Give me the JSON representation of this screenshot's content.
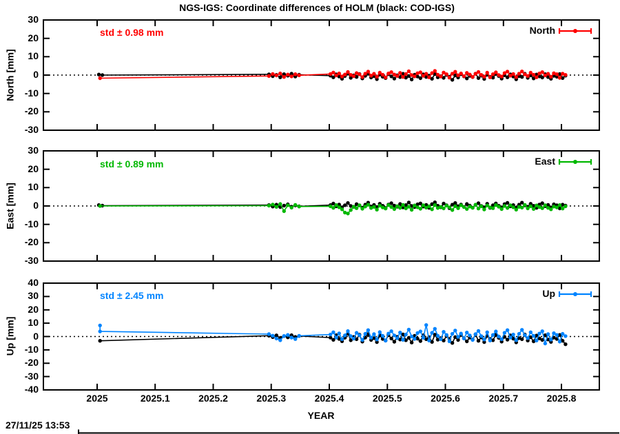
{
  "title": "NGS-IGS: Coordinate differences of HOLM (black: COD-IGS)",
  "timestamp": "27/11/25 13:53",
  "x_axis": {
    "label": "YEAR",
    "ticks": [
      {
        "value": 2025.0,
        "label": "2025"
      },
      {
        "value": 2025.1,
        "label": "2025.1"
      },
      {
        "value": 2025.2,
        "label": "2025.2"
      },
      {
        "value": 2025.3,
        "label": "2025.3"
      },
      {
        "value": 2025.4,
        "label": "2025.4"
      },
      {
        "value": 2025.5,
        "label": "2025.5"
      },
      {
        "value": 2025.6,
        "label": "2025.6"
      },
      {
        "value": 2025.7,
        "label": "2025.7"
      },
      {
        "value": 2025.8,
        "label": "2025.8"
      }
    ],
    "range": [
      2024.907,
      2025.865
    ]
  },
  "colors": {
    "north_accent": "#ff0000",
    "east_accent": "#00b800",
    "up_accent": "#0084ff",
    "reference_series": "#000000",
    "zero_line": "#000000"
  },
  "chart_data": {
    "type": "scatter",
    "subtype": "time-series with connecting lines, 3 stacked panels",
    "grid": "zero-line dotted only",
    "legend_position": "top-right inside each panel",
    "panels": [
      {
        "name": "North",
        "ylabel": "North [mm]",
        "ylim": [
          -30,
          30
        ],
        "yticks": [
          30,
          20,
          10,
          0,
          -10,
          -20,
          -30
        ],
        "std_label": "std ± 0.98 mm",
        "legend_label": "North",
        "accent_color": "#ff0000",
        "series": [
          {
            "name": "COD-IGS",
            "color": "#000000",
            "segments": [
              {
                "points": [
                  [
                    2025.003,
                    0.3
                  ],
                  [
                    2025.009,
                    0.0
                  ]
                ]
              },
              {
                "x_start": 2025.296,
                "x_step": 0.0065,
                "values": [
                  0.4,
                  -0.6,
                  0.1,
                  -1.2,
                  0.5,
                  -0.3,
                  0.8,
                  -0.8,
                  0.2
                ]
              },
              {
                "x_start": 2025.402,
                "x_step": 0.005,
                "values": [
                  -0.3,
                  -1.2,
                  0.4,
                  -0.8,
                  -2.0,
                  -0.5,
                  0.9,
                  -1.5,
                  -0.2,
                  -1.0,
                  0.6,
                  -1.8,
                  -0.4,
                  0.8,
                  -1.3,
                  -0.6,
                  -2.2,
                  0.3,
                  -0.9,
                  -1.6,
                  0.5,
                  -0.7,
                  -1.9,
                  -0.1,
                  -1.1,
                  0.7,
                  -1.4,
                  -0.5,
                  -2.4,
                  0.2,
                  -0.8,
                  -1.7,
                  0.4,
                  -1.0,
                  -0.3,
                  -2.0,
                  0.6,
                  -1.2,
                  -0.6,
                  -1.5,
                  0.1,
                  -0.9,
                  -2.6,
                  -0.2,
                  -1.3,
                  0.5,
                  -0.7,
                  -1.8,
                  -0.4,
                  -1.1,
                  0.8,
                  -1.6,
                  -0.3,
                  -2.1,
                  0.2,
                  -0.9,
                  -1.4,
                  0.6,
                  -0.5,
                  -1.9,
                  -0.1,
                  -1.2,
                  0.4,
                  -0.8,
                  -2.3,
                  -0.6,
                  -1.0,
                  0.7,
                  -1.5,
                  -0.2,
                  -1.8,
                  0.3,
                  -0.7,
                  -1.3,
                  0.5,
                  -1.1,
                  -2.0,
                  -0.4,
                  -0.9,
                  0.6,
                  -1.6,
                  -0.3
                ]
              }
            ]
          },
          {
            "name": "NGS-IGS",
            "color": "#ff0000",
            "segments": [
              {
                "points": [
                  [
                    2025.005,
                    -1.7
                  ]
                ]
              },
              {
                "x_start": 2025.296,
                "x_step": 0.0065,
                "values": [
                  -0.5,
                  0.6,
                  -0.2,
                  0.9,
                  -1.0,
                  0.3,
                  -0.7,
                  0.5,
                  -0.1
                ]
              },
              {
                "x_start": 2025.402,
                "x_step": 0.005,
                "values": [
                  0.6,
                  1.4,
                  -0.2,
                  0.9,
                  -0.8,
                  0.3,
                  1.7,
                  0.1,
                  -0.6,
                  1.1,
                  0.4,
                  -1.1,
                  0.8,
                  1.9,
                  -0.3,
                  0.7,
                  -0.9,
                  1.3,
                  0.2,
                  -1.3,
                  0.9,
                  1.6,
                  0.3,
                  -0.5,
                  1.2,
                  -1.0,
                  0.6,
                  2.1,
                  0.0,
                  -0.7,
                  1.0,
                  1.5,
                  -0.4,
                  0.7,
                  -1.2,
                  1.1,
                  2.3,
                  0.2,
                  -0.8,
                  1.4,
                  0.5,
                  -1.4,
                  0.8,
                  1.8,
                  -0.1,
                  0.9,
                  -0.6,
                  1.2,
                  0.3,
                  -1.0,
                  0.7,
                  1.7,
                  0.1,
                  -0.9,
                  1.3,
                  -1.2,
                  0.5,
                  1.5,
                  0.0,
                  -0.8,
                  1.1,
                  1.9,
                  -0.3,
                  0.6,
                  -1.1,
                  0.8,
                  2.0,
                  0.4,
                  -0.5,
                  1.3,
                  0.2,
                  -1.2,
                  0.9,
                  1.6,
                  -0.2,
                  0.7,
                  -0.9,
                  1.0,
                  0.5,
                  -1.5,
                  0.8,
                  0.1
                ]
              }
            ]
          }
        ]
      },
      {
        "name": "East",
        "ylabel": "East [mm]",
        "ylim": [
          -30,
          30
        ],
        "yticks": [
          30,
          20,
          10,
          0,
          -10,
          -20,
          -30
        ],
        "std_label": "std ± 0.89 mm",
        "legend_label": "East",
        "accent_color": "#00b800",
        "series": [
          {
            "name": "COD-IGS",
            "color": "#000000",
            "segments": [
              {
                "points": [
                  [
                    2025.003,
                    0.5
                  ],
                  [
                    2025.009,
                    0.2
                  ]
                ]
              },
              {
                "x_start": 2025.296,
                "x_step": 0.0065,
                "values": [
                  0.5,
                  -0.3,
                  0.7,
                  -0.6,
                  0.2,
                  0.9,
                  -0.4,
                  0.3,
                  -0.2
                ]
              },
              {
                "x_start": 2025.402,
                "x_step": 0.005,
                "values": [
                  0.5,
                  1.3,
                  -0.2,
                  0.8,
                  -0.7,
                  0.4,
                  1.6,
                  0.0,
                  -0.5,
                  1.0,
                  0.3,
                  -0.9,
                  0.7,
                  1.8,
                  -0.3,
                  0.6,
                  -0.6,
                  1.2,
                  0.1,
                  -1.1,
                  0.8,
                  1.5,
                  0.2,
                  -0.4,
                  1.1,
                  -0.8,
                  0.5,
                  1.9,
                  0.0,
                  -0.6,
                  0.9,
                  1.4,
                  -0.3,
                  0.6,
                  -1.0,
                  1.0,
                  2.0,
                  0.1,
                  -0.7,
                  1.3,
                  0.4,
                  -1.2,
                  0.7,
                  1.6,
                  -0.1,
                  0.8,
                  -0.5,
                  1.1,
                  0.2,
                  -0.9,
                  0.6,
                  1.5,
                  0.0,
                  -0.8,
                  1.2,
                  -1.0,
                  0.4,
                  1.4,
                  0.1,
                  -0.7,
                  1.0,
                  1.7,
                  -0.2,
                  0.5,
                  -0.9,
                  0.7,
                  1.8,
                  0.3,
                  -0.4,
                  1.2,
                  0.1,
                  -1.0,
                  0.8,
                  1.5,
                  -0.1,
                  0.6,
                  -0.8,
                  0.9,
                  0.4,
                  -1.3,
                  0.7,
                  0.2
                ]
              }
            ]
          },
          {
            "name": "NGS-IGS",
            "color": "#00b800",
            "segments": [
              {
                "points": [
                  [
                    2025.005,
                    0.0
                  ]
                ]
              },
              {
                "x_start": 2025.296,
                "x_step": 0.0065,
                "values": [
                  0.2,
                  0.8,
                  -0.5,
                  1.1,
                  -2.8,
                  0.4,
                  -0.9,
                  0.6,
                  -0.3
                ]
              },
              {
                "x_start": 2025.402,
                "x_step": 0.005,
                "values": [
                  -0.2,
                  -1.0,
                  0.5,
                  -0.7,
                  -1.8,
                  -3.6,
                  -4.1,
                  -2.2,
                  -0.4,
                  -1.2,
                  0.4,
                  -1.5,
                  -0.3,
                  0.7,
                  -1.1,
                  -0.5,
                  -2.0,
                  0.2,
                  -0.8,
                  -1.4,
                  0.5,
                  -0.6,
                  -1.7,
                  -0.1,
                  -1.0,
                  0.6,
                  -1.3,
                  -0.4,
                  -2.1,
                  0.3,
                  -0.7,
                  -1.5,
                  0.4,
                  -0.9,
                  -0.2,
                  -1.8,
                  0.5,
                  -1.1,
                  -0.5,
                  -1.3,
                  0.2,
                  -0.8,
                  -2.2,
                  -0.1,
                  -1.2,
                  0.4,
                  -0.6,
                  -1.6,
                  -0.3,
                  -1.0,
                  0.7,
                  -1.4,
                  -0.2,
                  -1.9,
                  0.3,
                  -0.8,
                  -1.2,
                  0.5,
                  -0.4,
                  -1.7,
                  0.0,
                  -1.1,
                  0.4,
                  -0.7,
                  -2.0,
                  -0.5,
                  -0.9,
                  0.6,
                  -1.3,
                  -0.2,
                  -1.6,
                  0.3,
                  -0.6,
                  -1.2,
                  0.4,
                  -1.0,
                  -1.8,
                  -0.3,
                  -0.8,
                  0.5,
                  -1.4,
                  -0.2
                ]
              }
            ]
          }
        ]
      },
      {
        "name": "Up",
        "ylabel": "Up [mm]",
        "ylim": [
          -40,
          40
        ],
        "yticks": [
          40,
          30,
          20,
          10,
          0,
          -10,
          -20,
          -30,
          -40
        ],
        "std_label": "std ± 2.45 mm",
        "legend_label": "Up",
        "accent_color": "#0084ff",
        "series": [
          {
            "name": "COD-IGS",
            "color": "#000000",
            "segments": [
              {
                "points": [
                  [
                    2025.005,
                    -3.2
                  ]
                ]
              },
              {
                "x_start": 2025.296,
                "x_step": 0.0065,
                "values": [
                  0.6,
                  -0.4,
                  0.9,
                  -1.1,
                  0.3,
                  -0.6,
                  1.0,
                  -0.3,
                  0.4
                ]
              },
              {
                "x_start": 2025.402,
                "x_step": 0.005,
                "values": [
                  -0.8,
                  -2.5,
                  1.0,
                  -1.8,
                  -3.5,
                  -0.9,
                  2.2,
                  -2.8,
                  -0.3,
                  -2.0,
                  1.4,
                  -3.8,
                  -0.8,
                  1.8,
                  -2.6,
                  -1.2,
                  -4.2,
                  0.8,
                  -1.8,
                  -3.0,
                  1.2,
                  -1.5,
                  -3.9,
                  -0.2,
                  -2.2,
                  1.6,
                  -2.8,
                  -1.0,
                  -4.5,
                  0.5,
                  -1.6,
                  -3.4,
                  1.0,
                  -2.0,
                  -0.5,
                  -4.0,
                  1.4,
                  -2.4,
                  -1.2,
                  -3.0,
                  0.3,
                  -1.8,
                  -4.8,
                  -0.4,
                  -2.6,
                  1.2,
                  -1.4,
                  -3.6,
                  -0.8,
                  -2.2,
                  1.6,
                  -3.2,
                  -0.6,
                  -4.2,
                  0.5,
                  -1.8,
                  -2.8,
                  1.3,
                  -1.0,
                  -3.8,
                  -0.2,
                  -2.4,
                  0.9,
                  -1.6,
                  -4.4,
                  -1.2,
                  -2.0,
                  1.5,
                  -3.0,
                  -0.5,
                  -3.6,
                  0.7,
                  -1.4,
                  -2.6,
                  1.0,
                  -2.2,
                  -4.0,
                  -0.8,
                  -1.8,
                  1.2,
                  -3.2,
                  -5.8
                ]
              }
            ]
          },
          {
            "name": "NGS-IGS",
            "color": "#0084ff",
            "segments": [
              {
                "points": [
                  [
                    2025.005,
                    8.3
                  ],
                  [
                    2025.005,
                    3.8
                  ]
                ]
              },
              {
                "x_start": 2025.296,
                "x_step": 0.0065,
                "values": [
                  1.8,
                  0.6,
                  -1.5,
                  -2.8,
                  0.4,
                  1.2,
                  -0.8,
                  -1.9,
                  0.5
                ]
              },
              {
                "x_start": 2025.402,
                "x_step": 0.005,
                "values": [
                  1.5,
                  3.2,
                  -0.8,
                  2.4,
                  -2.0,
                  0.9,
                  4.1,
                  0.3,
                  -1.6,
                  2.8,
                  1.0,
                  -2.6,
                  2.0,
                  4.8,
                  -0.9,
                  1.8,
                  -2.2,
                  3.3,
                  0.5,
                  -3.1,
                  2.2,
                  4.0,
                  0.8,
                  -1.3,
                  3.0,
                  -2.5,
                  1.5,
                  5.2,
                  0.0,
                  -1.8,
                  2.6,
                  3.8,
                  -1.0,
                  8.6,
                  -3.0,
                  2.8,
                  5.8,
                  0.5,
                  -2.0,
                  3.5,
                  1.2,
                  -3.6,
                  2.0,
                  4.5,
                  -0.3,
                  2.2,
                  -1.5,
                  3.0,
                  0.8,
                  -2.6,
                  1.8,
                  4.2,
                  0.3,
                  -2.2,
                  3.2,
                  -3.0,
                  1.2,
                  3.8,
                  0.0,
                  -2.0,
                  2.8,
                  4.8,
                  -0.8,
                  1.5,
                  -2.8,
                  2.0,
                  5.0,
                  1.0,
                  -1.2,
                  3.2,
                  0.5,
                  -3.0,
                  2.2,
                  4.0,
                  -5.2,
                  1.8,
                  -2.3,
                  2.5,
                  1.2,
                  -3.8,
                  2.0,
                  0.3
                ]
              }
            ]
          }
        ]
      }
    ]
  }
}
